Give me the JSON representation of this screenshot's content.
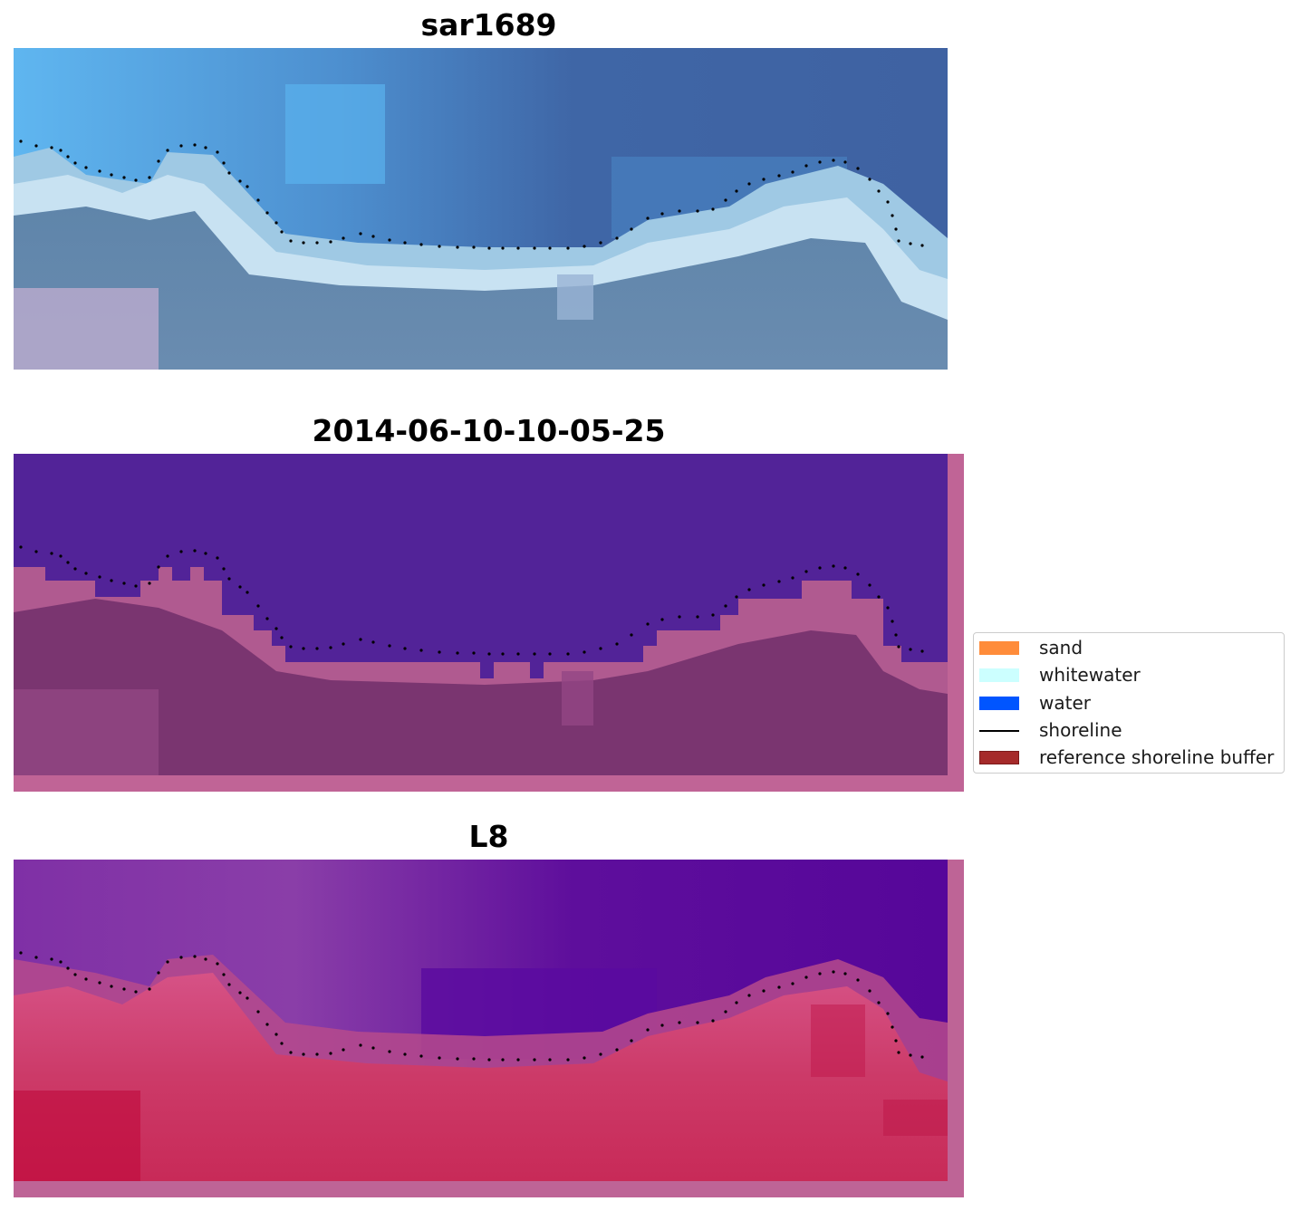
{
  "titles": {
    "panel_1": "sar1689",
    "panel_2": "2014-06-10-10-05-25",
    "panel_3": "L8"
  },
  "legend": {
    "items": [
      {
        "label": "sand",
        "kind": "patch",
        "color": "#ff8c3a",
        "edge": "#ff8c3a"
      },
      {
        "label": "whitewater",
        "kind": "patch",
        "color": "#ccffff",
        "edge": "#ccffff"
      },
      {
        "label": "water",
        "kind": "patch",
        "color": "#0055ff",
        "edge": "#0055ff"
      },
      {
        "label": "shoreline",
        "kind": "line",
        "color": "#000000"
      },
      {
        "label": "reference shoreline buffer",
        "kind": "patch",
        "color": "#a52a2a",
        "edge": "#7a1a1a"
      }
    ]
  },
  "colors": {
    "rgb_sky_light": "#5fb6f0",
    "rgb_ocean_dark": "#3f66a6",
    "rgb_ocean_mid": "#4a82c2",
    "rgb_whitewater": "#c8e2f2",
    "rgb_land": "#5e83a8",
    "rgb_land_pink": "#c2aed0",
    "class_water_purple": "#522398",
    "class_land_mauve": "#7a3570",
    "class_land_pink": "#b05a90",
    "class_border_pink": "#c06496",
    "ndwi_purple": "#5a0a9a",
    "ndwi_violet": "#7a2aa0",
    "ndwi_red": "#c42050",
    "ndwi_pink": "#d24a7c",
    "ndwi_border": "#be6496",
    "shoreline_dots": "#000000"
  }
}
